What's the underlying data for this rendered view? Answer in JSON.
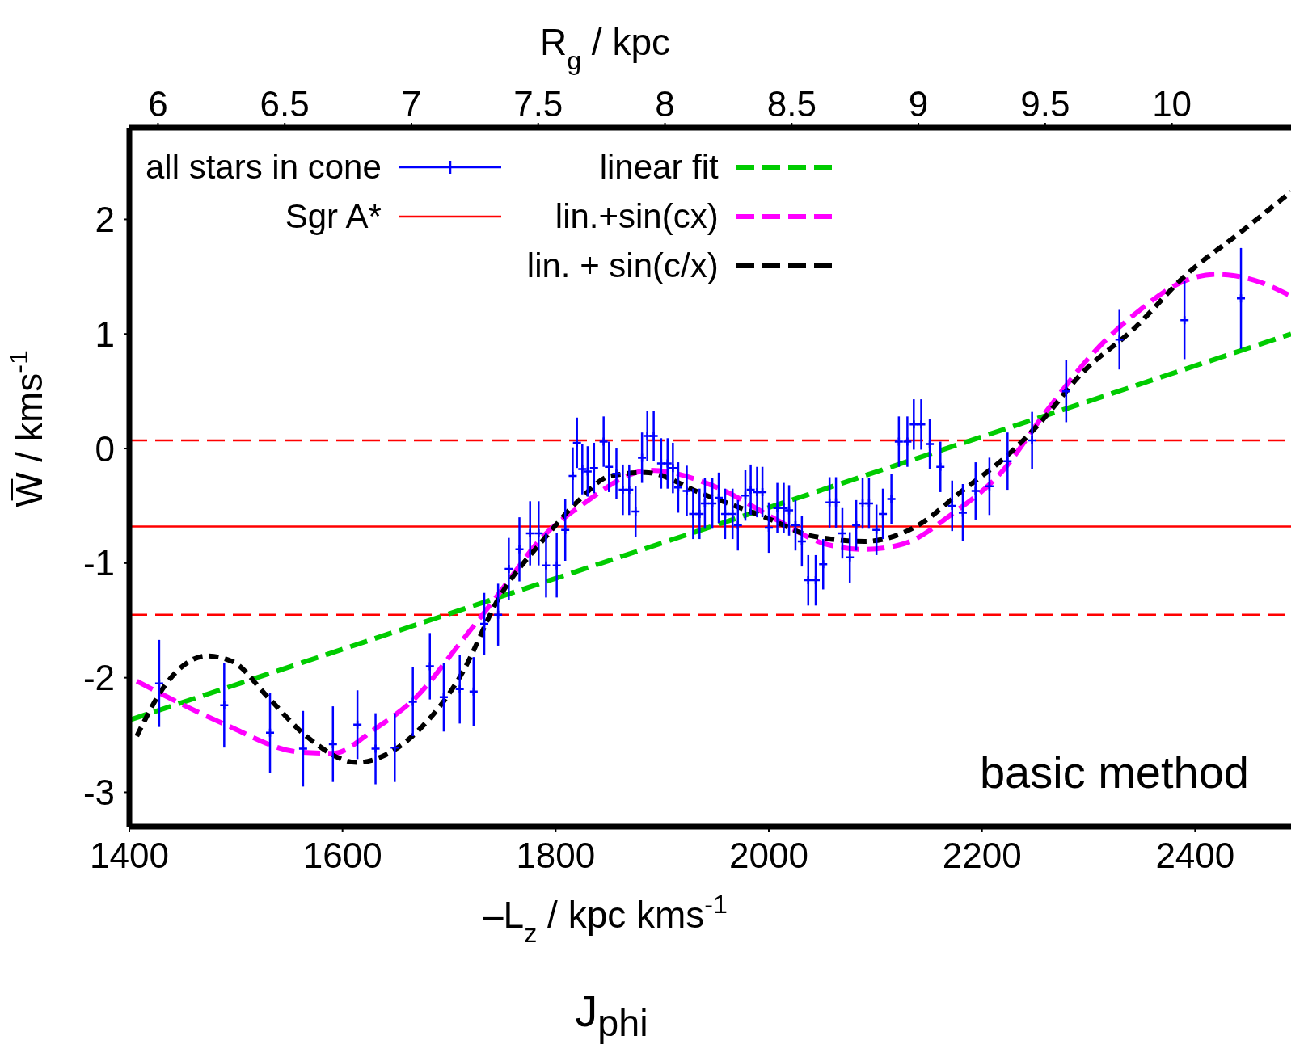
{
  "chart_data": {
    "type": "line",
    "xlabel": "–L$_{z}$ / kpc kms$^{-1}$",
    "ylabel": "W̅ / kms$^{-1}$",
    "x2label": "R$_{g}$ / kpc",
    "xlim": [
      1400,
      2490
    ],
    "xticks": [
      1400,
      1600,
      1800,
      2000,
      2200,
      2400
    ],
    "x2lim": [
      5.887,
      10.47
    ],
    "x2ticks": [
      6,
      6.5,
      7,
      7.5,
      8,
      8.5,
      9,
      9.5,
      10
    ],
    "ylim": [
      -3.3,
      2.8
    ],
    "yticks": [
      -3,
      -2,
      -1,
      0,
      1,
      2
    ],
    "grid": false,
    "legend": "top left",
    "line_style": "dashed",
    "series": [
      {
        "name": "all stars in cone",
        "type": "scatter",
        "color": "#0000ff",
        "marker": "cross",
        "x": [
          1428,
          1489,
          1532,
          1563,
          1591,
          1614,
          1631,
          1649,
          1666,
          1682,
          1695,
          1710,
          1723,
          1733,
          1746,
          1756,
          1766,
          1776,
          1784,
          1791,
          1801,
          1809,
          1816,
          1820,
          1825,
          1830,
          1836,
          1845,
          1850,
          1857,
          1863,
          1869,
          1875,
          1881,
          1886,
          1892,
          1899,
          1905,
          1910,
          1915,
          1923,
          1929,
          1935,
          1940,
          1947,
          1953,
          1959,
          1966,
          1971,
          1978,
          1983,
          1989,
          1994,
          2000,
          2008,
          2014,
          2019,
          2025,
          2031,
          2037,
          2044,
          2051,
          2057,
          2063,
          2069,
          2076,
          2082,
          2088,
          2094,
          2101,
          2107,
          2115,
          2122,
          2130,
          2136,
          2143,
          2151,
          2161,
          2172,
          2182,
          2194,
          2207,
          2224,
          2247,
          2279,
          2329,
          2390,
          2443
        ],
        "values": [
          -2.05,
          -2.24,
          -2.48,
          -2.62,
          -2.58,
          -2.41,
          -2.62,
          -2.61,
          -2.21,
          -1.9,
          -2.17,
          -2.1,
          -2.12,
          -1.53,
          -1.45,
          -1.05,
          -0.88,
          -0.74,
          -0.74,
          -1.02,
          -1.02,
          -0.71,
          -0.24,
          0.05,
          -0.18,
          -0.2,
          -0.17,
          0.06,
          -0.16,
          -0.22,
          -0.36,
          -0.36,
          -0.55,
          -0.08,
          0.11,
          0.11,
          -0.13,
          -0.13,
          -0.17,
          -0.34,
          -0.37,
          -0.57,
          -0.57,
          -0.48,
          -0.48,
          -0.43,
          -0.57,
          -0.57,
          -0.67,
          -0.41,
          -0.36,
          -0.38,
          -0.38,
          -0.69,
          -0.52,
          -0.52,
          -0.54,
          -0.67,
          -0.81,
          -1.15,
          -1.15,
          -1.01,
          -0.47,
          -0.47,
          -0.74,
          -0.95,
          -0.67,
          -0.48,
          -0.48,
          -0.71,
          -0.57,
          -0.44,
          0.06,
          0.06,
          0.21,
          0.21,
          0.04,
          -0.16,
          -0.5,
          -0.56,
          -0.37,
          -0.33,
          -0.11,
          0.07,
          0.5,
          0.95,
          1.12,
          1.31
        ],
        "errors": [
          0.38,
          0.37,
          0.35,
          0.33,
          0.33,
          0.3,
          0.31,
          0.3,
          0.3,
          0.29,
          0.3,
          0.3,
          0.3,
          0.27,
          0.27,
          0.27,
          0.28,
          0.28,
          0.28,
          0.28,
          0.28,
          0.27,
          0.25,
          0.22,
          0.22,
          0.22,
          0.22,
          0.22,
          0.22,
          0.22,
          0.22,
          0.22,
          0.22,
          0.22,
          0.22,
          0.22,
          0.22,
          0.22,
          0.22,
          0.22,
          0.22,
          0.22,
          0.22,
          0.22,
          0.22,
          0.22,
          0.22,
          0.22,
          0.22,
          0.22,
          0.22,
          0.22,
          0.22,
          0.22,
          0.22,
          0.22,
          0.22,
          0.22,
          0.22,
          0.22,
          0.22,
          0.22,
          0.22,
          0.22,
          0.22,
          0.22,
          0.22,
          0.22,
          0.22,
          0.22,
          0.22,
          0.22,
          0.22,
          0.22,
          0.22,
          0.22,
          0.22,
          0.22,
          0.22,
          0.25,
          0.25,
          0.25,
          0.25,
          0.25,
          0.27,
          0.26,
          0.34,
          0.44
        ]
      },
      {
        "name": "linear fit",
        "color": "#00cc00",
        "x": [
          1400,
          2490
        ],
        "values": [
          -2.37,
          1.0
        ]
      },
      {
        "name": "lin.+sin(cx)",
        "color": "#ff00ff",
        "x": [
          1407,
          1488,
          1560,
          1591,
          1630,
          1669,
          1711,
          1744,
          1789,
          1822,
          1889,
          1949,
          2007,
          2052,
          2090,
          2127,
          2172,
          2217,
          2260,
          2305,
          2343,
          2392,
          2420,
          2455,
          2490
        ],
        "values": [
          -2.03,
          -2.4,
          -2.65,
          -2.66,
          -2.45,
          -2.17,
          -1.69,
          -1.3,
          -0.76,
          -0.51,
          -0.19,
          -0.33,
          -0.62,
          -0.83,
          -0.88,
          -0.83,
          -0.57,
          -0.22,
          0.32,
          0.84,
          1.17,
          1.47,
          1.52,
          1.47,
          1.33
        ]
      },
      {
        "name": "lin. + sin(c/x)",
        "color": "#000000",
        "x": [
          1407,
          1434,
          1473,
          1497,
          1530,
          1566,
          1614,
          1639,
          1669,
          1711,
          1747,
          1789,
          1822,
          1851,
          1884,
          1939,
          2002,
          2039,
          2090,
          2140,
          2180,
          2225,
          2255,
          2293,
          2343,
          2392,
          2443,
          2490
        ],
        "values": [
          -2.51,
          -2.06,
          -1.81,
          -1.86,
          -2.17,
          -2.51,
          -2.74,
          -2.68,
          -2.48,
          -1.98,
          -1.3,
          -0.79,
          -0.45,
          -0.24,
          -0.21,
          -0.4,
          -0.62,
          -0.76,
          -0.81,
          -0.67,
          -0.38,
          -0.05,
          0.23,
          0.65,
          1.05,
          1.52,
          1.89,
          2.24
        ]
      }
    ],
    "ref_lines": [
      {
        "axis": "y",
        "value": -0.68,
        "label": "Sgr A*",
        "color": "#ff0000",
        "line_style": "solid"
      },
      {
        "axis": "y",
        "value": 0.07,
        "color": "#ff0000",
        "line_style": "dashed"
      },
      {
        "axis": "y",
        "value": -1.45,
        "color": "#ff0000",
        "line_style": "dashed"
      }
    ],
    "annotations": [
      "basic method",
      "J$_{phi}$"
    ]
  }
}
